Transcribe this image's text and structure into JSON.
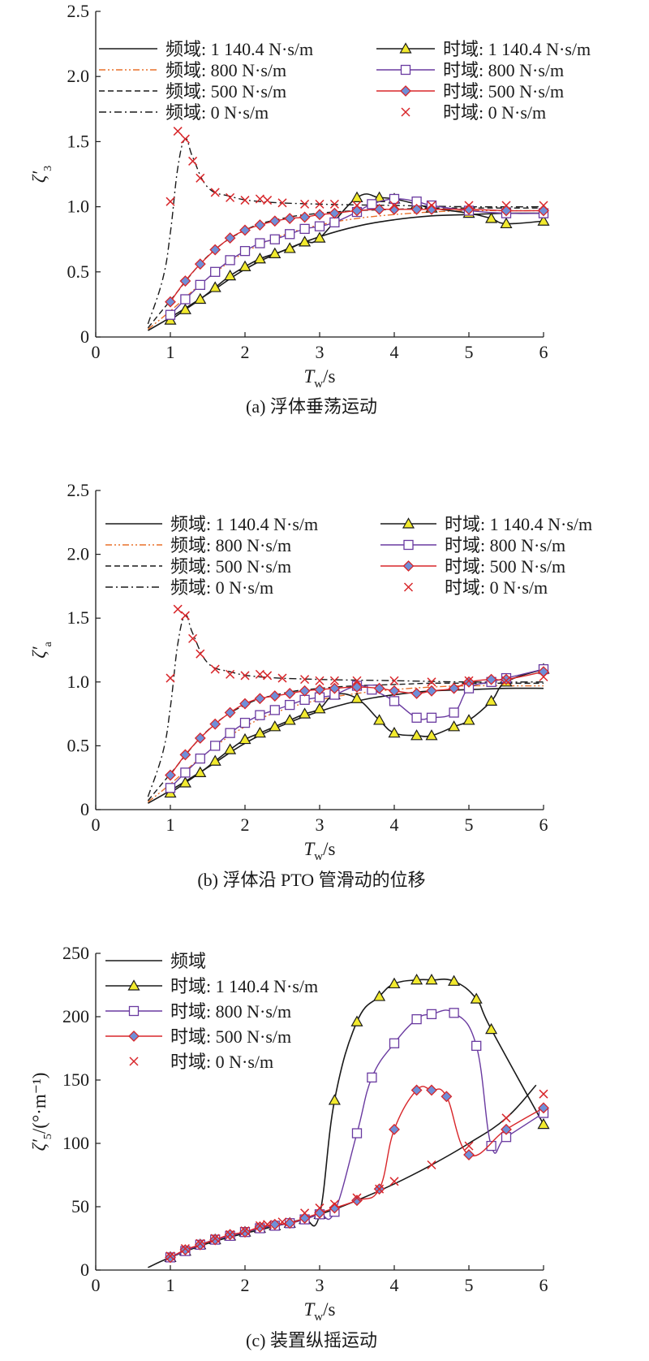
{
  "chart_data": [
    {
      "type": "line",
      "panel_label": "(a) 浮体垂荡运动",
      "ylabel": "ζ′",
      "ylabel_sub": "3",
      "xlabel": "T",
      "xlabel_sub": "w",
      "xlabel_unit": "/s",
      "xlim": [
        0,
        6
      ],
      "ylim": [
        0,
        2.5
      ],
      "xticks": [
        "0",
        "1",
        "2",
        "3",
        "4",
        "5",
        "6"
      ],
      "yticks": [
        "0",
        "0.5",
        "1.0",
        "1.5",
        "2.0",
        "2.5"
      ],
      "legend": [
        {
          "label": "频域: 1 140.4 N·s/m",
          "style": "solid-black"
        },
        {
          "label": "时域: 1 140.4 N·s/m",
          "style": "triangle-black"
        },
        {
          "label": "频域: 800 N·s/m",
          "style": "dashdotdot-orange"
        },
        {
          "label": "时域: 800 N·s/m",
          "style": "square-purple"
        },
        {
          "label": "频域: 500 N·s/m",
          "style": "dashed-black"
        },
        {
          "label": "时域: 500 N·s/m",
          "style": "diamond-red"
        },
        {
          "label": "频域: 0 N·s/m",
          "style": "dashdot-black"
        },
        {
          "label": "时域: 0 N·s/m",
          "style": "cross-red"
        }
      ],
      "series": [
        {
          "name": "频域: 1 140.4 N·s/m",
          "style": "solid-black",
          "x": [
            0.7,
            1,
            1.5,
            2,
            2.5,
            3,
            3.5,
            4,
            4.5,
            5,
            5.5,
            6
          ],
          "y": [
            0.05,
            0.15,
            0.33,
            0.52,
            0.66,
            0.77,
            0.85,
            0.9,
            0.93,
            0.94,
            0.95,
            0.95
          ]
        },
        {
          "name": "频域: 800 N·s/m",
          "style": "dashdotdot-orange",
          "x": [
            0.7,
            1,
            1.5,
            2,
            2.5,
            3,
            3.5,
            4,
            4.5,
            5,
            5.5,
            6
          ],
          "y": [
            0.06,
            0.2,
            0.45,
            0.65,
            0.78,
            0.86,
            0.91,
            0.94,
            0.96,
            0.97,
            0.97,
            0.97
          ]
        },
        {
          "name": "频域: 500 N·s/m",
          "style": "dashed-black",
          "x": [
            0.7,
            1,
            1.5,
            2,
            2.5,
            3,
            3.5,
            4,
            4.5,
            5,
            5.5,
            6
          ],
          "y": [
            0.07,
            0.28,
            0.62,
            0.82,
            0.91,
            0.95,
            0.97,
            0.98,
            0.99,
            0.99,
            0.99,
            0.99
          ]
        },
        {
          "name": "频域: 0 N·s/m",
          "style": "dashdot-black",
          "x": [
            0.7,
            0.9,
            1.0,
            1.1,
            1.2,
            1.3,
            1.5,
            1.8,
            2.2,
            3,
            4,
            5,
            6
          ],
          "y": [
            0.1,
            0.45,
            0.8,
            1.3,
            1.52,
            1.38,
            1.15,
            1.08,
            1.04,
            1.02,
            1.01,
            1.0,
            1.0
          ]
        },
        {
          "name": "时域: 1 140.4 N·s/m",
          "style": "triangle-black",
          "x": [
            1,
            1.2,
            1.4,
            1.6,
            1.8,
            2,
            2.2,
            2.4,
            2.6,
            2.8,
            3,
            3.5,
            3.8,
            4,
            4.3,
            4.5,
            5,
            5.3,
            5.5,
            6
          ],
          "y": [
            0.13,
            0.21,
            0.29,
            0.38,
            0.47,
            0.54,
            0.6,
            0.64,
            0.68,
            0.73,
            0.76,
            1.07,
            1.07,
            1.06,
            1.02,
            0.99,
            0.95,
            0.91,
            0.87,
            0.89
          ]
        },
        {
          "name": "时域: 800 N·s/m",
          "style": "square-purple",
          "x": [
            1,
            1.2,
            1.4,
            1.6,
            1.8,
            2,
            2.2,
            2.4,
            2.6,
            2.8,
            3,
            3.2,
            3.5,
            3.7,
            4,
            4.3,
            4.5,
            5,
            5.5,
            6
          ],
          "y": [
            0.17,
            0.29,
            0.4,
            0.5,
            0.59,
            0.66,
            0.72,
            0.75,
            0.79,
            0.83,
            0.85,
            0.88,
            0.96,
            1.02,
            1.06,
            1.04,
            1.01,
            0.97,
            0.95,
            0.95
          ]
        },
        {
          "name": "时域: 500 N·s/m",
          "style": "diamond-red",
          "x": [
            1,
            1.2,
            1.4,
            1.6,
            1.8,
            2,
            2.2,
            2.4,
            2.6,
            2.8,
            3,
            3.2,
            3.5,
            3.8,
            4,
            4.3,
            4.5,
            5,
            5.5,
            6
          ],
          "y": [
            0.27,
            0.43,
            0.56,
            0.67,
            0.76,
            0.82,
            0.86,
            0.89,
            0.91,
            0.92,
            0.94,
            0.95,
            0.97,
            0.98,
            0.98,
            0.98,
            0.98,
            0.98,
            0.97,
            0.97
          ]
        },
        {
          "name": "时域: 0 N·s/m",
          "style": "cross-red",
          "x": [
            1,
            1.1,
            1.2,
            1.3,
            1.4,
            1.6,
            1.8,
            2.0,
            2.2,
            2.3,
            2.5,
            2.8,
            3.0,
            3.2,
            3.5,
            4.0,
            4.5,
            5.0,
            5.5,
            6.0
          ],
          "y": [
            1.04,
            1.58,
            1.52,
            1.35,
            1.22,
            1.11,
            1.07,
            1.05,
            1.06,
            1.05,
            1.03,
            1.02,
            1.02,
            1.02,
            1.01,
            1.01,
            1.01,
            1.01,
            1.01,
            1.01
          ]
        }
      ]
    },
    {
      "type": "line",
      "panel_label": "(b) 浮体沿 PTO 管滑动的位移",
      "ylabel": "ζ′",
      "ylabel_sub": "a",
      "xlabel": "T",
      "xlabel_sub": "w",
      "xlabel_unit": "/s",
      "xlim": [
        0,
        6
      ],
      "ylim": [
        0,
        2.5
      ],
      "xticks": [
        "0",
        "1",
        "2",
        "3",
        "4",
        "5",
        "6"
      ],
      "yticks": [
        "0",
        "0.5",
        "1.0",
        "1.5",
        "2.0",
        "2.5"
      ],
      "legend": [
        {
          "label": "频域: 1 140.4 N·s/m",
          "style": "solid-black"
        },
        {
          "label": "时域: 1 140.4 N·s/m",
          "style": "triangle-black"
        },
        {
          "label": "频域: 800 N·s/m",
          "style": "dashdotdot-orange"
        },
        {
          "label": "时域: 800 N·s/m",
          "style": "square-purple"
        },
        {
          "label": "频域: 500 N·s/m",
          "style": "dashed-black"
        },
        {
          "label": "时域: 500 N·s/m",
          "style": "diamond-red"
        },
        {
          "label": "频域: 0 N·s/m",
          "style": "dashdot-black"
        },
        {
          "label": "时域: 0 N·s/m",
          "style": "cross-red"
        }
      ],
      "series": [
        {
          "name": "频域: 1 140.4 N·s/m",
          "style": "solid-black",
          "x": [
            0.7,
            1,
            1.5,
            2,
            2.5,
            3,
            3.5,
            4,
            4.5,
            5,
            5.5,
            6
          ],
          "y": [
            0.05,
            0.15,
            0.33,
            0.52,
            0.66,
            0.77,
            0.85,
            0.9,
            0.93,
            0.94,
            0.95,
            0.95
          ]
        },
        {
          "name": "频域: 800 N·s/m",
          "style": "dashdotdot-orange",
          "x": [
            0.7,
            1,
            1.5,
            2,
            2.5,
            3,
            3.5,
            4,
            4.5,
            5,
            5.5,
            6
          ],
          "y": [
            0.06,
            0.2,
            0.45,
            0.65,
            0.78,
            0.86,
            0.91,
            0.94,
            0.96,
            0.97,
            0.97,
            0.97
          ]
        },
        {
          "name": "频域: 500 N·s/m",
          "style": "dashed-black",
          "x": [
            0.7,
            1,
            1.5,
            2,
            2.5,
            3,
            3.5,
            4,
            4.5,
            5,
            5.5,
            6
          ],
          "y": [
            0.07,
            0.28,
            0.62,
            0.82,
            0.91,
            0.95,
            0.97,
            0.98,
            0.99,
            0.99,
            0.99,
            0.99
          ]
        },
        {
          "name": "频域: 0 N·s/m",
          "style": "dashdot-black",
          "x": [
            0.7,
            0.9,
            1.0,
            1.1,
            1.2,
            1.3,
            1.5,
            1.8,
            2.2,
            3,
            4,
            5,
            6
          ],
          "y": [
            0.1,
            0.45,
            0.8,
            1.3,
            1.52,
            1.38,
            1.15,
            1.08,
            1.04,
            1.02,
            1.01,
            1.0,
            1.0
          ]
        },
        {
          "name": "时域: 1 140.4 N·s/m",
          "style": "triangle-black",
          "x": [
            1,
            1.2,
            1.4,
            1.6,
            1.8,
            2,
            2.2,
            2.4,
            2.6,
            2.8,
            3,
            3.2,
            3.5,
            3.8,
            4,
            4.3,
            4.5,
            4.8,
            5.0,
            5.3,
            5.5,
            6
          ],
          "y": [
            0.13,
            0.21,
            0.29,
            0.38,
            0.47,
            0.55,
            0.6,
            0.65,
            0.7,
            0.75,
            0.79,
            0.9,
            0.87,
            0.7,
            0.6,
            0.58,
            0.58,
            0.65,
            0.7,
            0.85,
            1.0,
            1.1
          ]
        },
        {
          "name": "时域: 800 N·s/m",
          "style": "square-purple",
          "x": [
            1,
            1.2,
            1.4,
            1.6,
            1.8,
            2,
            2.2,
            2.4,
            2.6,
            2.8,
            3,
            3.2,
            3.5,
            3.7,
            4,
            4.3,
            4.5,
            4.8,
            5.0,
            5.3,
            5.5,
            6
          ],
          "y": [
            0.17,
            0.29,
            0.4,
            0.5,
            0.6,
            0.68,
            0.74,
            0.78,
            0.82,
            0.86,
            0.88,
            0.9,
            0.97,
            0.94,
            0.85,
            0.72,
            0.72,
            0.76,
            0.95,
            1.0,
            1.03,
            1.1
          ]
        },
        {
          "name": "时域: 500 N·s/m",
          "style": "diamond-red",
          "x": [
            1,
            1.2,
            1.4,
            1.6,
            1.8,
            2,
            2.2,
            2.4,
            2.6,
            2.8,
            3,
            3.2,
            3.5,
            3.8,
            4,
            4.3,
            4.5,
            4.8,
            5.0,
            5.3,
            5.5,
            6
          ],
          "y": [
            0.27,
            0.43,
            0.56,
            0.67,
            0.76,
            0.83,
            0.87,
            0.89,
            0.91,
            0.93,
            0.94,
            0.95,
            0.96,
            0.95,
            0.93,
            0.91,
            0.93,
            0.95,
            1.0,
            1.02,
            1.02,
            1.08
          ]
        },
        {
          "name": "时域: 0 N·s/m",
          "style": "cross-red",
          "x": [
            1,
            1.1,
            1.2,
            1.3,
            1.4,
            1.6,
            1.8,
            2.0,
            2.2,
            2.3,
            2.5,
            2.8,
            3.0,
            3.2,
            3.5,
            4.0,
            4.5,
            5.0,
            5.5,
            6.0
          ],
          "y": [
            1.03,
            1.57,
            1.52,
            1.34,
            1.22,
            1.1,
            1.06,
            1.05,
            1.06,
            1.05,
            1.03,
            1.02,
            1.01,
            1.01,
            1.01,
            1.01,
            1.0,
            1.01,
            1.01,
            1.04
          ]
        }
      ]
    },
    {
      "type": "line",
      "panel_label": "(c) 装置纵摇运动",
      "ylabel": "ζ′/(°·m⁻¹)",
      "ylabel_sub": "5",
      "xlabel": "T",
      "xlabel_sub": "w",
      "xlabel_unit": "/s",
      "xlim": [
        0,
        6
      ],
      "ylim": [
        0,
        250
      ],
      "xticks": [
        "0",
        "1",
        "2",
        "3",
        "4",
        "5",
        "6"
      ],
      "yticks": [
        "0",
        "50",
        "100",
        "150",
        "200",
        "250"
      ],
      "legend": [
        {
          "label": "频域",
          "style": "solid-black"
        },
        {
          "label": "时域: 1 140.4 N·s/m",
          "style": "triangle-black"
        },
        {
          "label": "时域: 800 N·s/m",
          "style": "square-purple"
        },
        {
          "label": "时域: 500 N·s/m",
          "style": "diamond-red"
        },
        {
          "label": "时域: 0 N·s/m",
          "style": "cross-red"
        }
      ],
      "series": [
        {
          "name": "频域",
          "style": "solid-black",
          "x": [
            0.7,
            1,
            1.5,
            2,
            2.5,
            3,
            3.5,
            4,
            4.5,
            5,
            5.5,
            5.9
          ],
          "y": [
            2,
            10,
            21,
            29,
            36,
            44,
            55,
            68,
            83,
            100,
            120,
            146
          ]
        },
        {
          "name": "时域: 1 140.4 N·s/m",
          "style": "triangle-black",
          "x": [
            1,
            1.2,
            1.4,
            1.6,
            1.8,
            2,
            2.2,
            2.4,
            2.6,
            2.8,
            3.0,
            3.2,
            3.5,
            3.8,
            4.0,
            4.3,
            4.5,
            4.8,
            5.1,
            5.3,
            6
          ],
          "y": [
            10,
            15,
            20,
            24,
            27,
            30,
            33,
            35,
            37,
            40,
            44,
            134,
            196,
            216,
            226,
            229,
            229,
            228,
            214,
            190,
            115
          ]
        },
        {
          "name": "时域: 800 N·s/m",
          "style": "square-purple",
          "x": [
            1,
            1.2,
            1.4,
            1.6,
            1.8,
            2,
            2.2,
            2.4,
            2.6,
            2.8,
            3.0,
            3.2,
            3.5,
            3.7,
            4.0,
            4.3,
            4.5,
            4.8,
            5.1,
            5.3,
            5.5,
            6
          ],
          "y": [
            10,
            15,
            20,
            24,
            27,
            30,
            33,
            35,
            37,
            40,
            44,
            46,
            108,
            152,
            179,
            198,
            202,
            203,
            177,
            98,
            105,
            124
          ]
        },
        {
          "name": "时域: 500 N·s/m",
          "style": "diamond-red",
          "x": [
            1,
            1.2,
            1.4,
            1.6,
            1.8,
            2,
            2.2,
            2.4,
            2.6,
            2.8,
            3.0,
            3.2,
            3.5,
            3.8,
            4.0,
            4.3,
            4.5,
            4.7,
            5.0,
            5.5,
            6
          ],
          "y": [
            10,
            16,
            20,
            24,
            28,
            30,
            34,
            36,
            37,
            41,
            45,
            49,
            55,
            64,
            111,
            142,
            142,
            137,
            91,
            111,
            128
          ]
        },
        {
          "name": "时域: 0 N·s/m",
          "style": "cross-red",
          "x": [
            1,
            1.2,
            1.4,
            1.6,
            1.8,
            2,
            2.2,
            2.3,
            2.5,
            2.8,
            3.0,
            3.2,
            3.5,
            3.8,
            4.0,
            4.5,
            5.0,
            5.5,
            6.0
          ],
          "y": [
            11,
            17,
            21,
            25,
            28,
            31,
            35,
            36,
            38,
            45,
            49,
            52,
            57,
            64,
            70,
            83,
            98,
            120,
            139
          ]
        }
      ]
    }
  ]
}
